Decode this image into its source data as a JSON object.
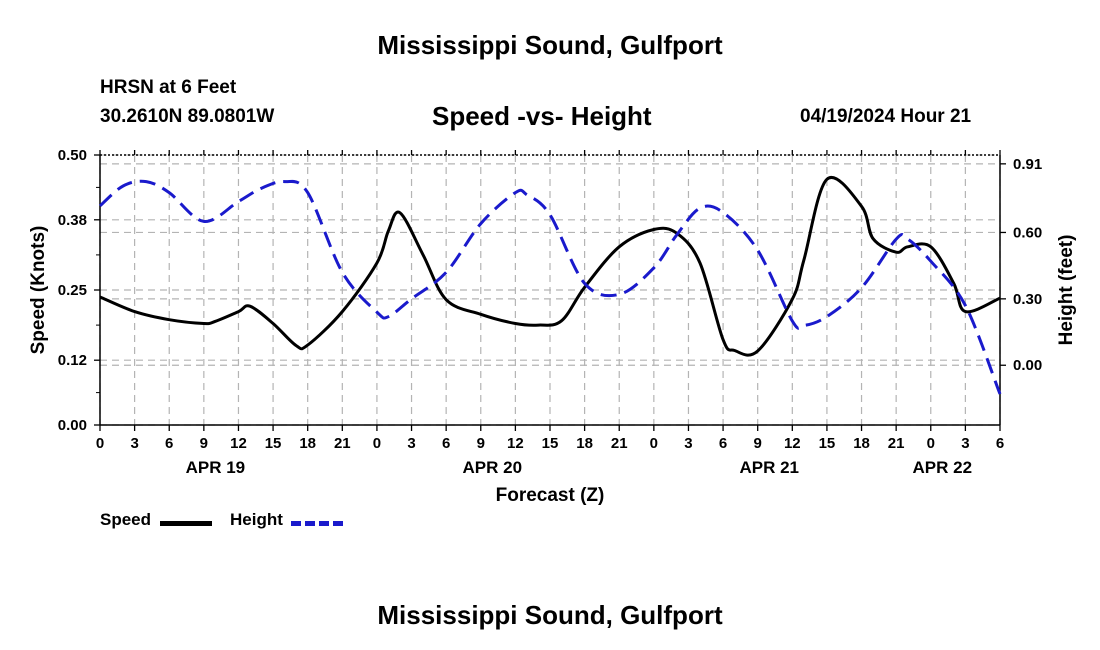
{
  "header": {
    "title": "Mississippi Sound, Gulfport",
    "station": "HRSN at 6 Feet",
    "coords": "30.2610N  89.0801W",
    "subtitle": "Speed -vs- Height",
    "datetime": "04/19/2024 Hour 21"
  },
  "footer": {
    "title": "Mississippi Sound, Gulfport"
  },
  "legend": [
    {
      "label": "Speed",
      "color": "#000000",
      "style": "solid"
    },
    {
      "label": "Height",
      "color": "#1a1acc",
      "style": "dashed"
    }
  ],
  "chart_data": {
    "type": "line",
    "title": "Speed -vs- Height",
    "xlabel": "Forecast (Z)",
    "ylabel": "Speed (Knots)",
    "y2label": "Height (feet)",
    "xlim": [
      0,
      78
    ],
    "ylim": [
      0,
      0.5
    ],
    "y2lim": [
      -0.27,
      0.95
    ],
    "grid": true,
    "legend_position": "bottom-left",
    "x_ticks": [
      0,
      3,
      6,
      9,
      12,
      15,
      18,
      21,
      24,
      27,
      30,
      33,
      36,
      39,
      42,
      45,
      48,
      51,
      54,
      57,
      60,
      63,
      66,
      69,
      72,
      75,
      78
    ],
    "x_tick_labels": [
      "0",
      "3",
      "6",
      "9",
      "12",
      "15",
      "18",
      "21",
      "0",
      "3",
      "6",
      "9",
      "12",
      "15",
      "18",
      "21",
      "0",
      "3",
      "6",
      "9",
      "12",
      "15",
      "18",
      "21",
      "0",
      "3",
      "6"
    ],
    "day_labels": [
      {
        "label": "APR 19",
        "x": 10
      },
      {
        "label": "APR 20",
        "x": 34
      },
      {
        "label": "APR 21",
        "x": 58
      },
      {
        "label": "APR 22",
        "x": 73
      }
    ],
    "y_ticks": [
      0.0,
      0.12,
      0.25,
      0.38,
      0.5
    ],
    "y_tick_labels": [
      "0.00",
      "0.12",
      "0.25",
      "0.38",
      "0.50"
    ],
    "y2_ticks": [
      0.0,
      0.3,
      0.6,
      0.91
    ],
    "y2_tick_labels": [
      "0.00",
      "0.30",
      "0.60",
      "0.91"
    ],
    "series": [
      {
        "name": "Speed",
        "axis": "left",
        "color": "#000000",
        "x": [
          0,
          3,
          6,
          9,
          10,
          12,
          13,
          15,
          17,
          18,
          21,
          24,
          25,
          26,
          28,
          30,
          33,
          36,
          38,
          40,
          42,
          45,
          48,
          50,
          52,
          54,
          55,
          57,
          60,
          61,
          63,
          66,
          67,
          69,
          70,
          72,
          74,
          75,
          78
        ],
        "y": [
          0.237,
          0.21,
          0.195,
          0.188,
          0.192,
          0.21,
          0.22,
          0.188,
          0.147,
          0.148,
          0.21,
          0.3,
          0.36,
          0.393,
          0.315,
          0.232,
          0.205,
          0.188,
          0.185,
          0.193,
          0.255,
          0.33,
          0.362,
          0.355,
          0.3,
          0.158,
          0.138,
          0.137,
          0.233,
          0.305,
          0.455,
          0.405,
          0.345,
          0.32,
          0.33,
          0.33,
          0.262,
          0.21,
          0.235
        ]
      },
      {
        "name": "Height",
        "axis": "right",
        "color": "#1a1acc",
        "x": [
          0,
          2,
          4,
          6,
          9,
          12,
          14,
          16,
          18,
          21,
          24,
          25,
          27,
          30,
          33,
          36,
          37,
          39,
          42,
          45,
          48,
          50,
          52,
          54,
          57,
          60,
          61,
          63,
          66,
          69,
          70,
          72,
          75,
          78
        ],
        "y": [
          0.72,
          0.81,
          0.83,
          0.78,
          0.65,
          0.74,
          0.8,
          0.83,
          0.78,
          0.42,
          0.24,
          0.22,
          0.3,
          0.42,
          0.64,
          0.78,
          0.77,
          0.68,
          0.37,
          0.32,
          0.44,
          0.59,
          0.71,
          0.69,
          0.52,
          0.2,
          0.18,
          0.22,
          0.35,
          0.57,
          0.57,
          0.47,
          0.27,
          -0.13
        ]
      }
    ]
  }
}
